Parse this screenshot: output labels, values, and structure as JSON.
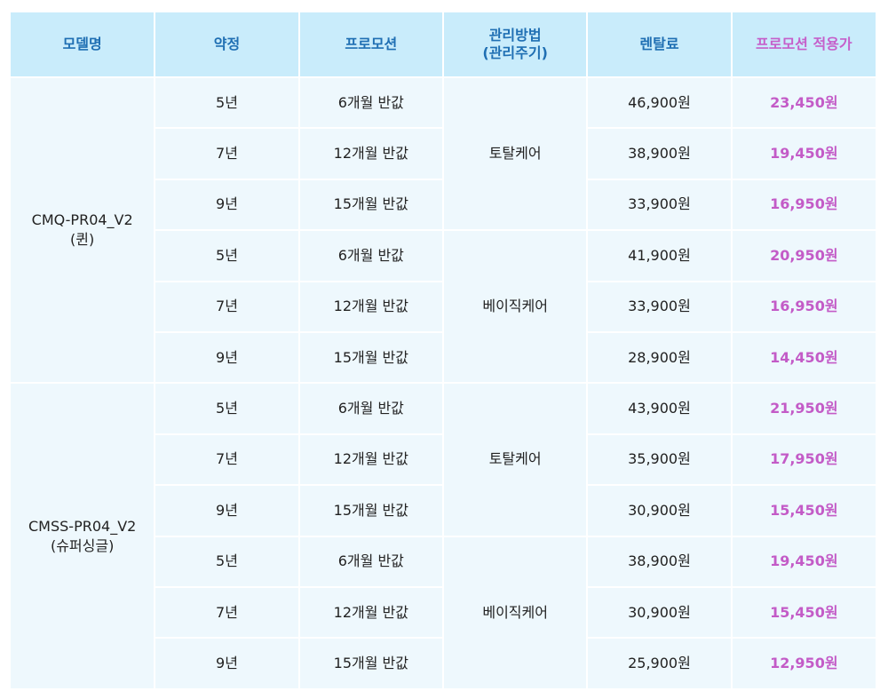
{
  "table": {
    "header": [
      [
        "모델명"
      ],
      [
        "약정"
      ],
      [
        "프로모션"
      ],
      [
        "관리방법",
        "(관리주기)"
      ],
      [
        "렌탈료"
      ],
      [
        "프로모션 적용가"
      ]
    ],
    "models": [
      {
        "name": [
          "CMQ-PR04_V2",
          "(퀸)"
        ],
        "plans": [
          {
            "care": "토탈케어",
            "rows": [
              {
                "term": "5년",
                "promo": "6개월 반값",
                "fee": "46,900원",
                "price": "23,450원"
              },
              {
                "term": "7년",
                "promo": "12개월 반값",
                "fee": "38,900원",
                "price": "19,450원"
              },
              {
                "term": "9년",
                "promo": "15개월 반값",
                "fee": "33,900원",
                "price": "16,950원"
              }
            ]
          },
          {
            "care": "베이직케어",
            "rows": [
              {
                "term": "5년",
                "promo": "6개월 반값",
                "fee": "41,900원",
                "price": "20,950원"
              },
              {
                "term": "7년",
                "promo": "12개월 반값",
                "fee": "33,900원",
                "price": "16,950원"
              },
              {
                "term": "9년",
                "promo": "15개월 반값",
                "fee": "28,900원",
                "price": "14,450원"
              }
            ]
          }
        ]
      },
      {
        "name": [
          "CMSS-PR04_V2",
          "(슈퍼싱글)"
        ],
        "plans": [
          {
            "care": "토탈케어",
            "rows": [
              {
                "term": "5년",
                "promo": "6개월 반값",
                "fee": "43,900원",
                "price": "21,950원"
              },
              {
                "term": "7년",
                "promo": "12개월 반값",
                "fee": "35,900원",
                "price": "17,950원"
              },
              {
                "term": "9년",
                "promo": "15개월 반값",
                "fee": "30,900원",
                "price": "15,450원"
              }
            ]
          },
          {
            "care": "베이직케어",
            "rows": [
              {
                "term": "5년",
                "promo": "6개월 반값",
                "fee": "38,900원",
                "price": "19,450원"
              },
              {
                "term": "7년",
                "promo": "12개월 반값",
                "fee": "30,900원",
                "price": "15,450원"
              },
              {
                "term": "9년",
                "promo": "15개월 반값",
                "fee": "25,900원",
                "price": "12,950원"
              }
            ]
          }
        ]
      }
    ]
  }
}
